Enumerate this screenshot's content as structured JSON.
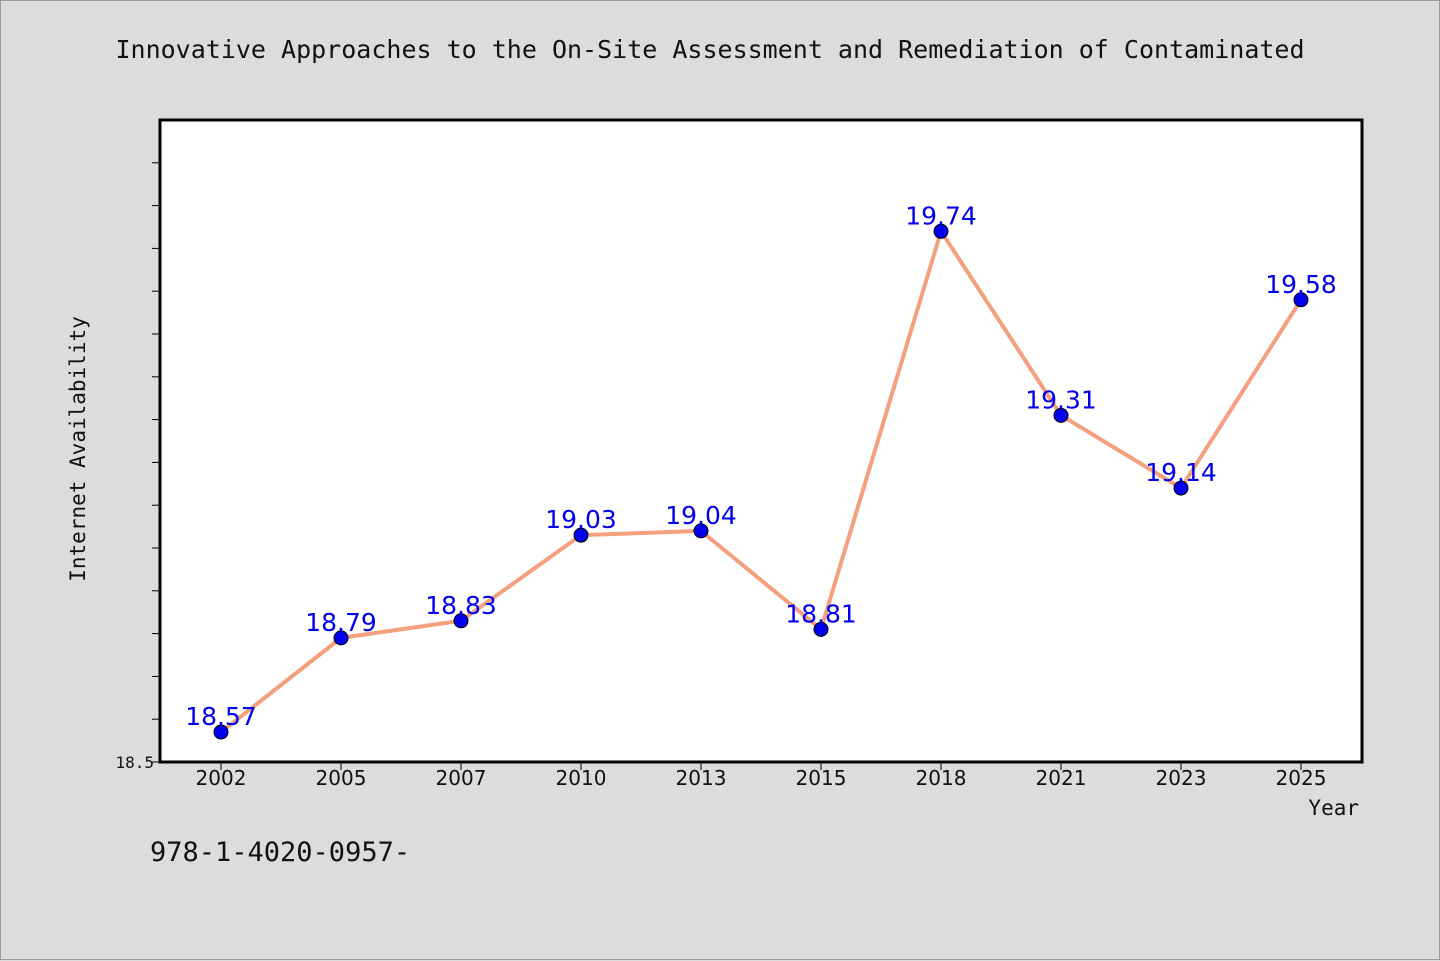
{
  "header": {
    "title": "Innovative Approaches to the On-Site Assessment and Remediation of Contaminated"
  },
  "footer": {
    "code": "978-1-4020-0957-"
  },
  "colors": {
    "line": "#f4a07f",
    "marker": "#0000ee",
    "data_label": "#0000ee",
    "background": "#dcdcdc",
    "plot_background": "#ffffff"
  },
  "chart_data": {
    "type": "line",
    "title": "Innovative Approaches to the On-Site Assessment and Remediation of Contaminated",
    "xlabel": "Year",
    "ylabel": "Internet Availability",
    "categories": [
      "2002",
      "2005",
      "2007",
      "2010",
      "2013",
      "2015",
      "2018",
      "2021",
      "2023",
      "2025"
    ],
    "series": [
      {
        "values": [
          18.57,
          18.79,
          18.83,
          19.03,
          19.04,
          18.81,
          19.74,
          19.31,
          19.14,
          19.58
        ],
        "labels": [
          "18.57",
          "18.79",
          "18.83",
          "19.03",
          "19.04",
          "18.81",
          "19.74",
          "19.31",
          "19.14",
          "19.58"
        ]
      }
    ],
    "ylim": [
      18.5,
      20.0
    ],
    "y_tick_labels": [
      "18.5"
    ],
    "grid": false,
    "legend": "none"
  }
}
